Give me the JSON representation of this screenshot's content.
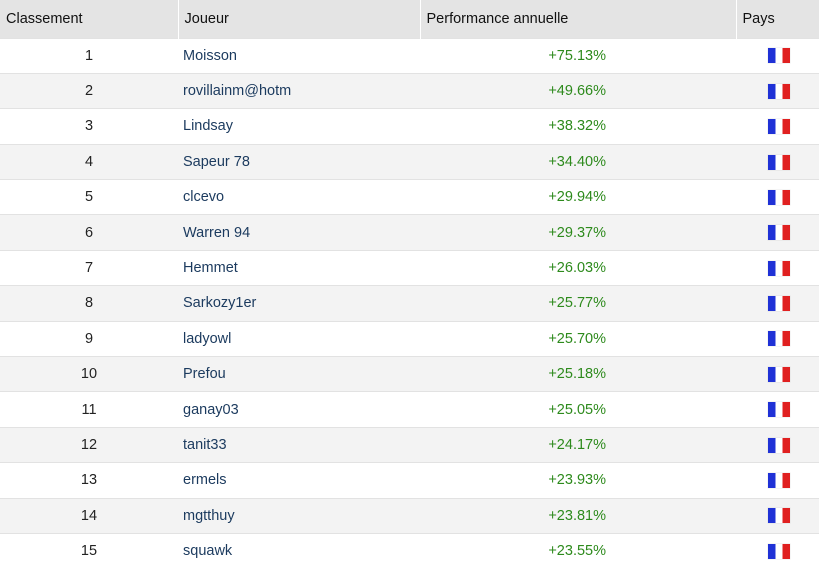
{
  "header": {
    "rank": "Classement",
    "player": "Joueur",
    "performance": "Performance annuelle",
    "country": "Pays"
  },
  "flag_colors": {
    "blue": "#1f31d6",
    "white": "#ffffff",
    "red": "#e02020"
  },
  "rows": [
    {
      "rank": "1",
      "player": "Moisson",
      "performance": "+75.13%",
      "country_icon": "france-flag-icon"
    },
    {
      "rank": "2",
      "player": "rovillainm@hotm",
      "performance": "+49.66%",
      "country_icon": "france-flag-icon"
    },
    {
      "rank": "3",
      "player": "Lindsay",
      "performance": "+38.32%",
      "country_icon": "france-flag-icon"
    },
    {
      "rank": "4",
      "player": "Sapeur 78",
      "performance": "+34.40%",
      "country_icon": "france-flag-icon"
    },
    {
      "rank": "5",
      "player": "clcevo",
      "performance": "+29.94%",
      "country_icon": "france-flag-icon"
    },
    {
      "rank": "6",
      "player": "Warren 94",
      "performance": "+29.37%",
      "country_icon": "france-flag-icon"
    },
    {
      "rank": "7",
      "player": "Hemmet",
      "performance": "+26.03%",
      "country_icon": "france-flag-icon"
    },
    {
      "rank": "8",
      "player": "Sarkozy1er",
      "performance": "+25.77%",
      "country_icon": "france-flag-icon"
    },
    {
      "rank": "9",
      "player": "ladyowl",
      "performance": "+25.70%",
      "country_icon": "france-flag-icon"
    },
    {
      "rank": "10",
      "player": "Prefou",
      "performance": "+25.18%",
      "country_icon": "france-flag-icon"
    },
    {
      "rank": "11",
      "player": "ganay03",
      "performance": "+25.05%",
      "country_icon": "france-flag-icon"
    },
    {
      "rank": "12",
      "player": "tanit33",
      "performance": "+24.17%",
      "country_icon": "france-flag-icon"
    },
    {
      "rank": "13",
      "player": "ermels",
      "performance": "+23.93%",
      "country_icon": "france-flag-icon"
    },
    {
      "rank": "14",
      "player": "mgtthuy",
      "performance": "+23.81%",
      "country_icon": "france-flag-icon"
    },
    {
      "rank": "15",
      "player": "squawk",
      "performance": "+23.55%",
      "country_icon": "france-flag-icon"
    }
  ]
}
